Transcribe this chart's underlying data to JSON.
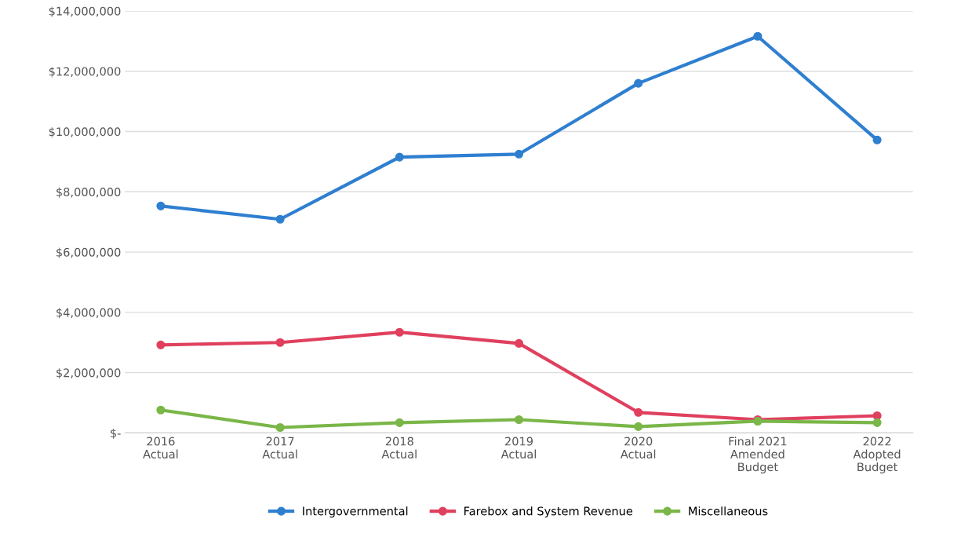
{
  "chart_data": {
    "type": "line",
    "categories": [
      "2016\nActual",
      "2017\nActual",
      "2018\nActual",
      "2019\nActual",
      "2020\nActual",
      "Final 2021\nAmended\nBudget",
      "2022\nAdopted\nBudget"
    ],
    "series": [
      {
        "name": "Intergovernmental",
        "color": "#2f7fd0",
        "values": [
          7530000,
          7090000,
          9150000,
          9250000,
          11600000,
          13160000,
          9720000
        ]
      },
      {
        "name": "Farebox and System Revenue",
        "color": "#e0405e",
        "values": [
          2920000,
          3000000,
          3340000,
          2970000,
          680000,
          440000,
          570000
        ]
      },
      {
        "name": "Miscellaneous",
        "color": "#7ab648",
        "values": [
          760000,
          180000,
          340000,
          440000,
          210000,
          390000,
          340000
        ]
      }
    ],
    "ylim": [
      0,
      14000000
    ],
    "yticks": [
      {
        "value": 0,
        "label": "$-"
      },
      {
        "value": 2000000,
        "label": "$2,000,000"
      },
      {
        "value": 4000000,
        "label": "$4,000,000"
      },
      {
        "value": 6000000,
        "label": "$6,000,000"
      },
      {
        "value": 8000000,
        "label": "$8,000,000"
      },
      {
        "value": 10000000,
        "label": "$10,000,000"
      },
      {
        "value": 12000000,
        "label": "$12,000,000"
      },
      {
        "value": 14000000,
        "label": "$14,000,000"
      }
    ],
    "grid": "y",
    "legend": "bottom",
    "marker": "circle",
    "line_style": "solid"
  }
}
